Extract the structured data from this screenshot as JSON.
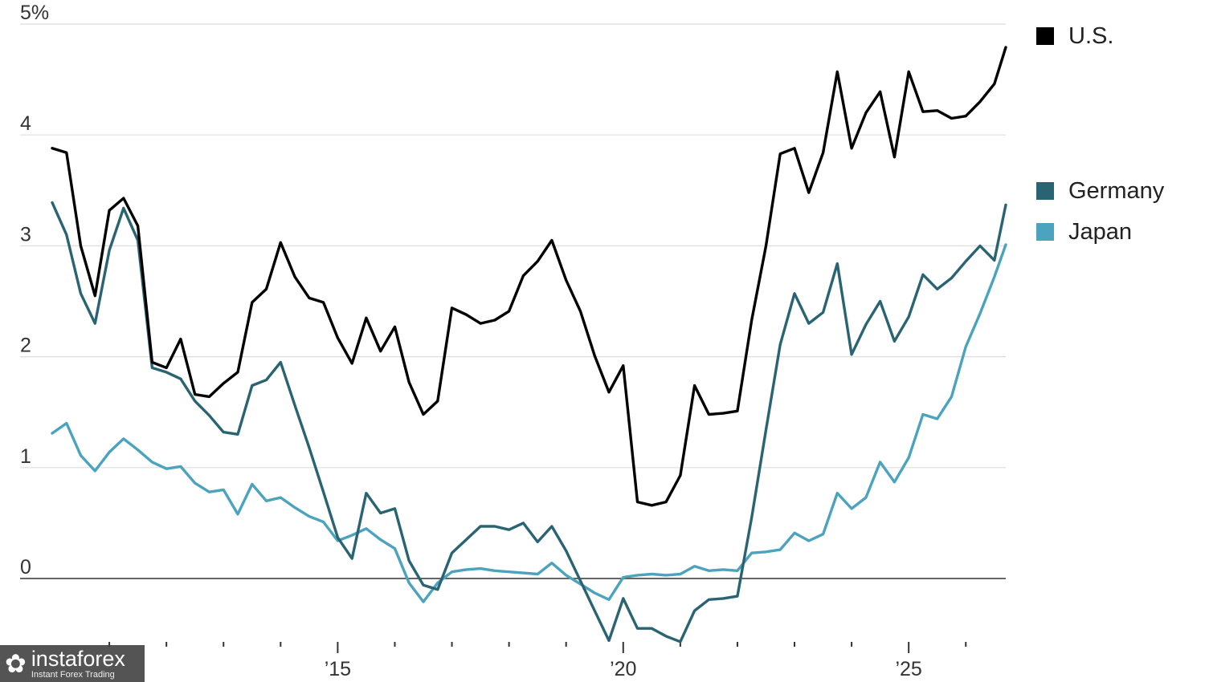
{
  "chart_data": {
    "type": "line",
    "title": "",
    "xlabel": "",
    "ylabel": "",
    "y_unit_label": "5%",
    "ylim": [
      -0.6,
      5
    ],
    "yticks": [
      0,
      1,
      2,
      3,
      4,
      5
    ],
    "ytick_labels": [
      "0",
      "1",
      "2",
      "3",
      "4",
      "5%"
    ],
    "xlim": [
      2010.0,
      2026.7
    ],
    "xticks": [
      2015,
      2020,
      2025
    ],
    "xtick_labels": [
      "’15",
      "’20",
      "’25"
    ],
    "minor_xticks": [
      2011,
      2012,
      2013,
      2014,
      2016,
      2017,
      2018,
      2019,
      2021,
      2022,
      2023,
      2024,
      2026
    ],
    "grid": true,
    "legend_position": "right",
    "x": [
      2010.0,
      2010.25,
      2010.5,
      2010.75,
      2011.0,
      2011.25,
      2011.5,
      2011.75,
      2012.0,
      2012.25,
      2012.5,
      2012.75,
      2013.0,
      2013.25,
      2013.5,
      2013.75,
      2014.0,
      2014.25,
      2014.5,
      2014.75,
      2015.0,
      2015.25,
      2015.5,
      2015.75,
      2016.0,
      2016.25,
      2016.5,
      2016.75,
      2017.0,
      2017.25,
      2017.5,
      2017.75,
      2018.0,
      2018.25,
      2018.5,
      2018.75,
      2019.0,
      2019.25,
      2019.5,
      2019.75,
      2020.0,
      2020.25,
      2020.5,
      2020.75,
      2021.0,
      2021.25,
      2021.5,
      2021.75,
      2022.0,
      2022.25,
      2022.5,
      2022.75,
      2023.0,
      2023.25,
      2023.5,
      2023.75,
      2024.0,
      2024.25,
      2024.5,
      2024.75,
      2025.0,
      2025.25,
      2025.5,
      2025.75,
      2026.0,
      2026.25,
      2026.5,
      2026.7
    ],
    "series": [
      {
        "name": "U.S.",
        "color": "#000000",
        "values": [
          3.88,
          3.84,
          3.0,
          2.55,
          3.32,
          3.43,
          3.18,
          1.95,
          1.9,
          2.16,
          1.66,
          1.64,
          1.76,
          1.86,
          2.49,
          2.61,
          3.03,
          2.72,
          2.53,
          2.49,
          2.17,
          1.94,
          2.35,
          2.05,
          2.27,
          1.77,
          1.48,
          1.6,
          2.44,
          2.38,
          2.3,
          2.33,
          2.41,
          2.73,
          2.86,
          3.05,
          2.69,
          2.41,
          2.01,
          1.68,
          1.92,
          0.69,
          0.66,
          0.69,
          0.93,
          1.74,
          1.48,
          1.49,
          1.51,
          2.33,
          3.0,
          3.83,
          3.88,
          3.48,
          3.84,
          4.57,
          3.88,
          4.2,
          4.39,
          3.8,
          4.57,
          4.21,
          4.22,
          4.15,
          4.17,
          4.3,
          4.46,
          4.79
        ]
      },
      {
        "name": "Germany",
        "color": "#2a6473",
        "values": [
          3.39,
          3.1,
          2.57,
          2.3,
          2.96,
          3.34,
          3.05,
          1.9,
          1.86,
          1.8,
          1.6,
          1.47,
          1.32,
          1.3,
          1.74,
          1.79,
          1.95,
          1.56,
          1.18,
          0.78,
          0.37,
          0.18,
          0.77,
          0.59,
          0.63,
          0.16,
          -0.06,
          -0.1,
          0.23,
          0.35,
          0.47,
          0.47,
          0.44,
          0.5,
          0.33,
          0.47,
          0.25,
          -0.02,
          -0.29,
          -0.56,
          -0.18,
          -0.45,
          -0.45,
          -0.52,
          -0.57,
          -0.29,
          -0.19,
          -0.18,
          -0.16,
          0.55,
          1.34,
          2.11,
          2.57,
          2.3,
          2.4,
          2.84,
          2.02,
          2.29,
          2.5,
          2.14,
          2.36,
          2.74,
          2.61,
          2.71,
          2.86,
          3.0,
          2.87,
          3.37
        ]
      },
      {
        "name": "Japan",
        "color": "#4ba3bd",
        "values": [
          1.31,
          1.4,
          1.11,
          0.97,
          1.14,
          1.26,
          1.16,
          1.05,
          0.99,
          1.01,
          0.86,
          0.78,
          0.8,
          0.58,
          0.85,
          0.7,
          0.73,
          0.64,
          0.56,
          0.51,
          0.34,
          0.39,
          0.45,
          0.35,
          0.27,
          -0.04,
          -0.21,
          -0.04,
          0.06,
          0.08,
          0.09,
          0.07,
          0.06,
          0.05,
          0.04,
          0.14,
          0.03,
          -0.05,
          -0.13,
          -0.19,
          0.01,
          0.03,
          0.04,
          0.03,
          0.04,
          0.11,
          0.07,
          0.08,
          0.07,
          0.23,
          0.24,
          0.26,
          0.41,
          0.34,
          0.4,
          0.77,
          0.63,
          0.73,
          1.05,
          0.87,
          1.09,
          1.48,
          1.44,
          1.64,
          2.09,
          2.39,
          2.72,
          3.01
        ]
      }
    ]
  },
  "watermark": {
    "logo": "✿",
    "name": "instaforex",
    "tagline": "Instant Forex Trading"
  }
}
